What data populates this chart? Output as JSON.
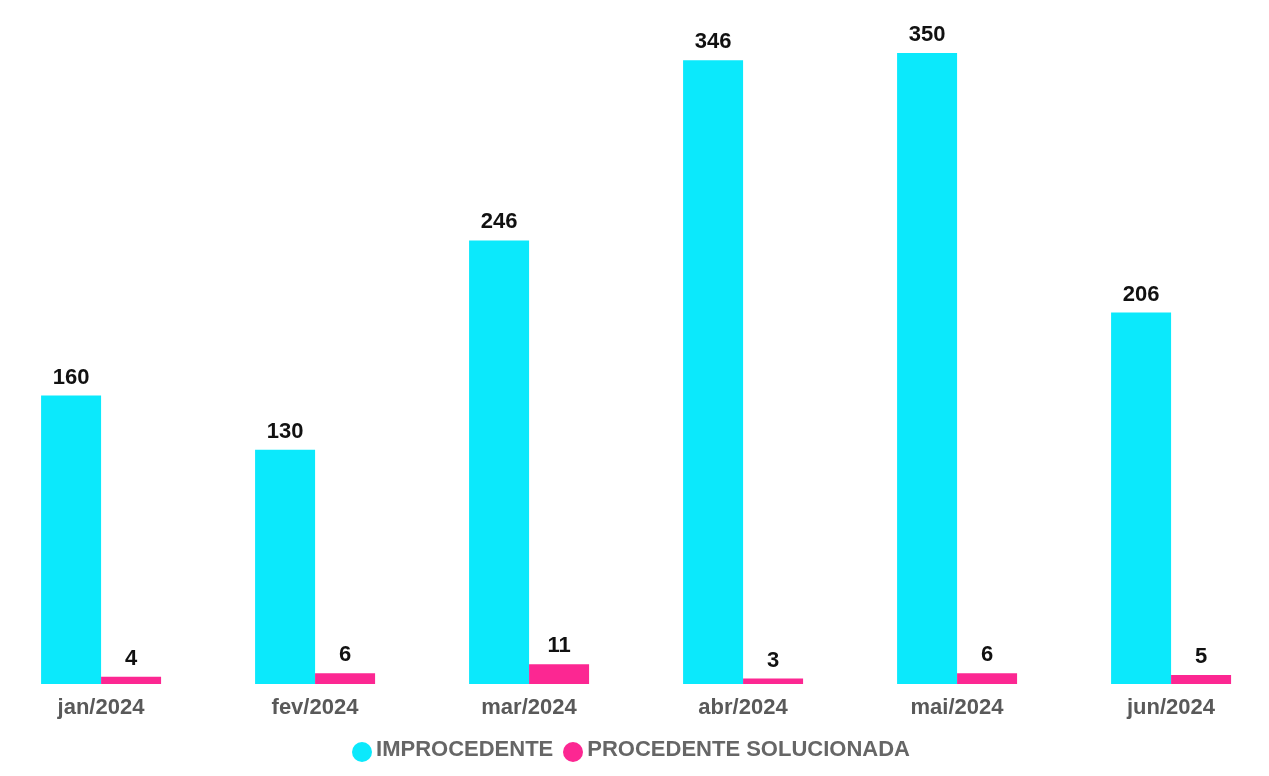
{
  "chart_data": {
    "type": "bar",
    "categories": [
      "jan/2024",
      "fev/2024",
      "mar/2024",
      "abr/2024",
      "mai/2024",
      "jun/2024"
    ],
    "series": [
      {
        "name": "IMPROCEDENTE",
        "color": "#0be9fc",
        "values": [
          160,
          130,
          246,
          346,
          350,
          206
        ]
      },
      {
        "name": "PROCEDENTE SOLUCIONADA",
        "color": "#fc2792",
        "values": [
          4,
          6,
          11,
          3,
          6,
          5
        ]
      }
    ],
    "data_labels": true,
    "legend": "bottom",
    "grid": false
  }
}
